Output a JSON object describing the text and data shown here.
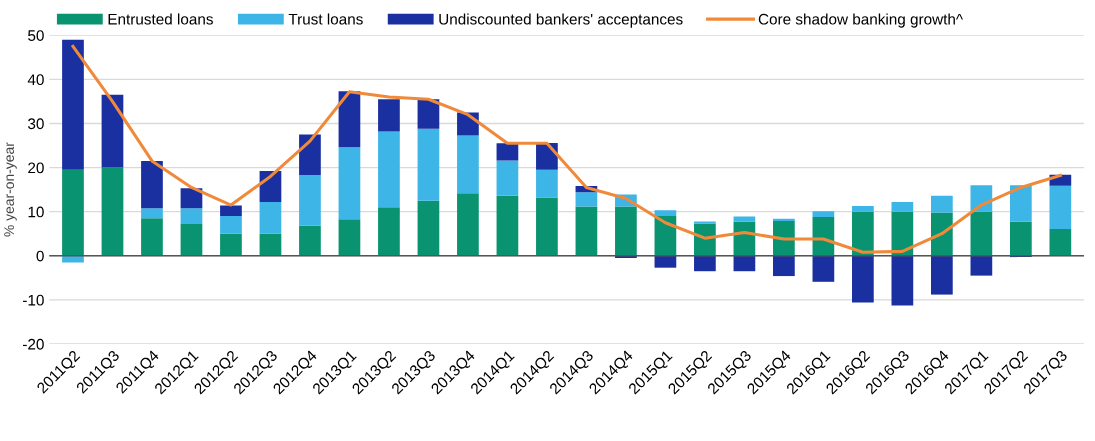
{
  "chart_data": {
    "type": "bar",
    "stacked": true,
    "ylabel": "% year-on-year",
    "categories": [
      "2011Q2",
      "2011Q3",
      "2011Q4",
      "2012Q1",
      "2012Q2",
      "2012Q3",
      "2012Q4",
      "2013Q1",
      "2013Q2",
      "2013Q3",
      "2013Q4",
      "2014Q1",
      "2014Q2",
      "2014Q3",
      "2014Q4",
      "2015Q1",
      "2015Q2",
      "2015Q3",
      "2015Q4",
      "2016Q1",
      "2016Q2",
      "2016Q3",
      "2016Q4",
      "2017Q1",
      "2017Q2",
      "2017Q3"
    ],
    "series": [
      {
        "name": "Entrusted loans",
        "color": "#0a9370",
        "values": [
          19.5,
          20,
          8.5,
          7.2,
          5,
          5,
          6.8,
          8.3,
          11,
          12.5,
          14.2,
          13.6,
          13.2,
          11.2,
          11.2,
          9,
          7.3,
          7.7,
          7.9,
          8.8,
          10,
          10,
          9.8,
          10,
          7.7,
          6.1
        ]
      },
      {
        "name": "Trust loans",
        "color": "#3db5e6",
        "values": [
          -1.5,
          0,
          2.3,
          3.6,
          4,
          7.2,
          11.5,
          16.3,
          17.2,
          16.3,
          13.1,
          8,
          6.3,
          3.2,
          2.7,
          1.3,
          0.5,
          1.2,
          0.5,
          1.3,
          1.3,
          2.2,
          3.8,
          6,
          8.3,
          9.8
        ]
      },
      {
        "name": "Undiscounted bankers' acceptances",
        "color": "#1a2fa0",
        "values": [
          29.5,
          16.5,
          10.7,
          4.5,
          2.4,
          7,
          9.2,
          12.7,
          7.3,
          6.7,
          5.2,
          3.9,
          6.1,
          1.4,
          -0.5,
          -2.7,
          -3.5,
          -3.5,
          -4.6,
          -5.9,
          -10.6,
          -11.3,
          -8.8,
          -4.5,
          -0.3,
          2.5
        ]
      },
      {
        "name": "Core shadow banking growth^",
        "type": "line",
        "color": "#f08a3a",
        "values": [
          47.5,
          35,
          21.5,
          15.5,
          11.5,
          18,
          26,
          37.2,
          36,
          35.5,
          32,
          25.5,
          25.5,
          15.5,
          13,
          7.5,
          4,
          5.3,
          3.8,
          3.8,
          0.8,
          1,
          5,
          11.5,
          15.5,
          18.2
        ]
      }
    ],
    "ylim": [
      -20,
      50
    ],
    "yticks": [
      -20,
      -10,
      0,
      10,
      20,
      30,
      40,
      50
    ],
    "grid": "y",
    "legend": "top"
  }
}
